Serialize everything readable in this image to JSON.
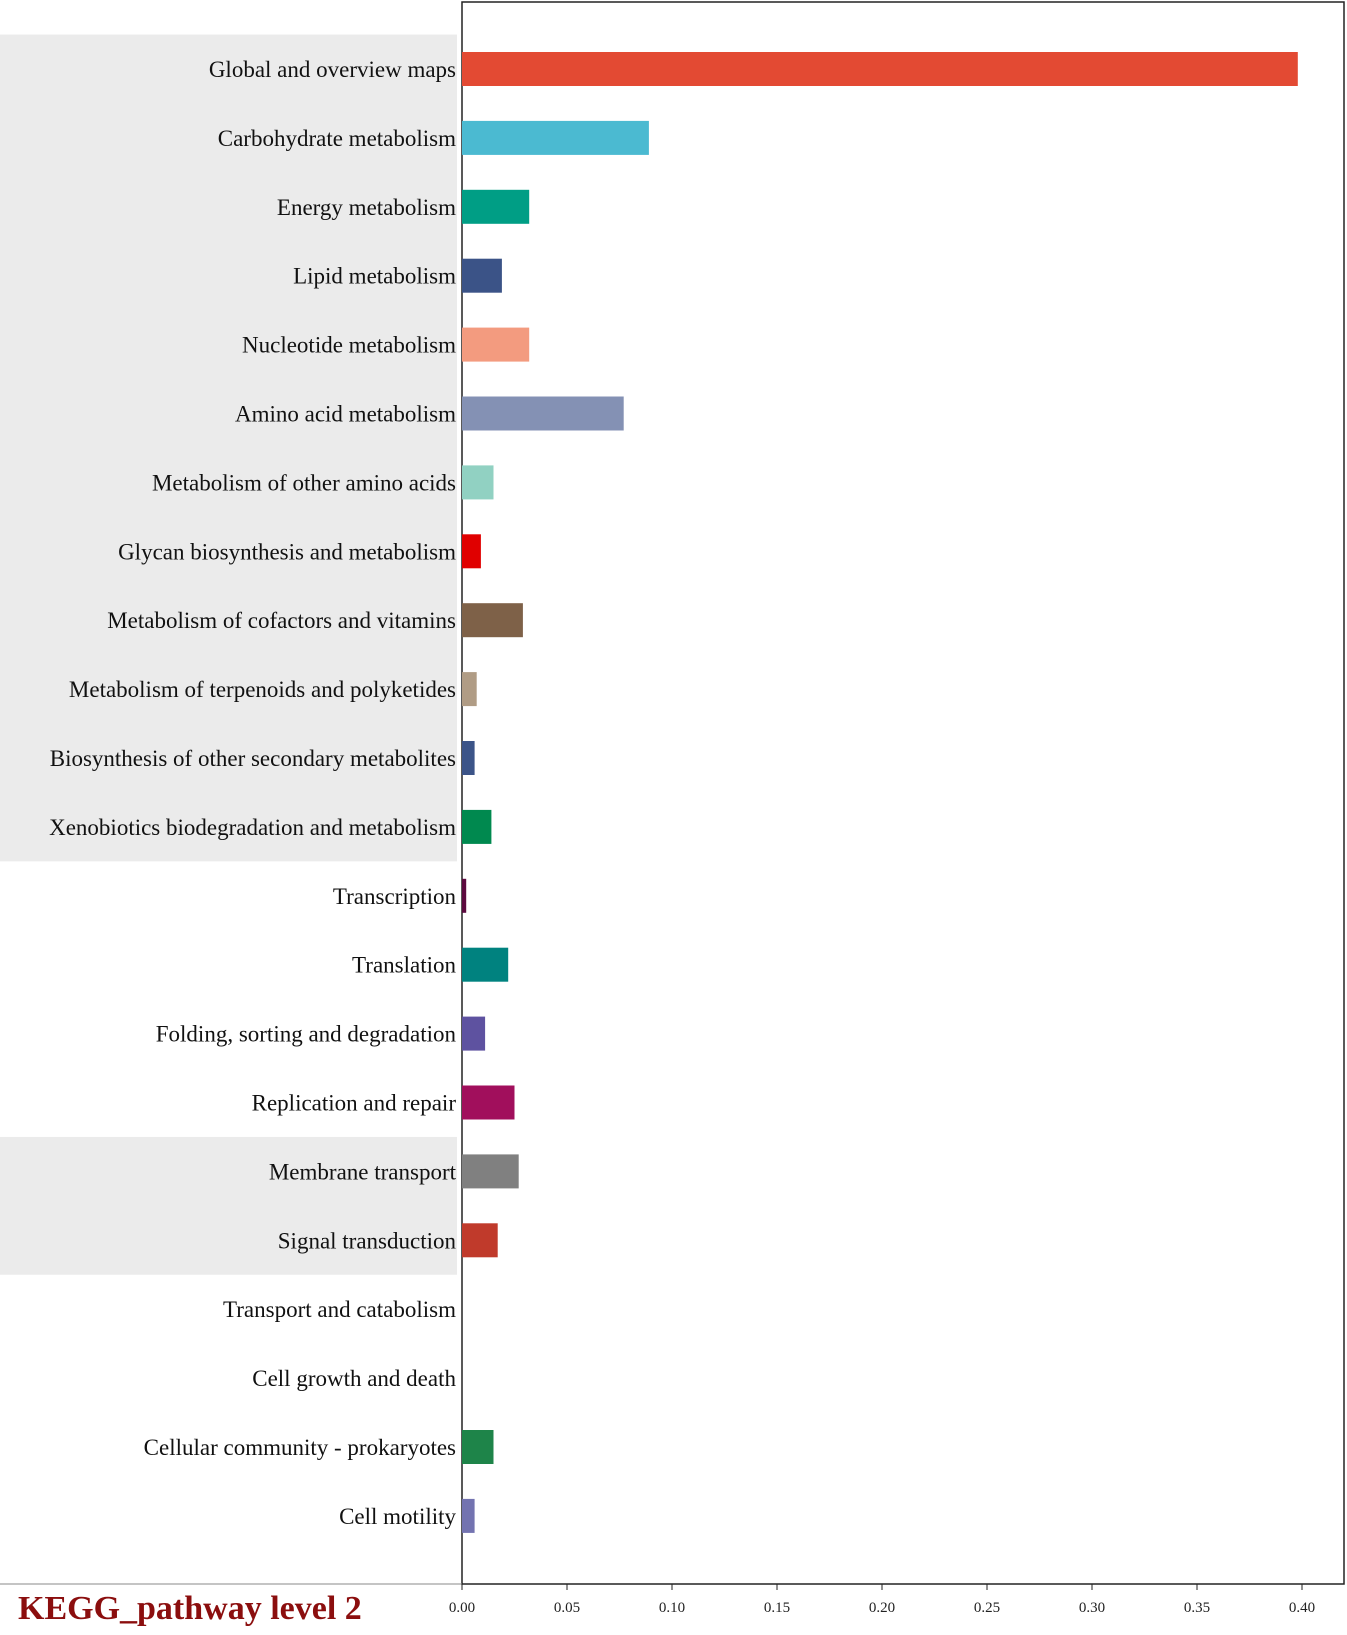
{
  "chart_data": {
    "type": "bar",
    "orientation": "horizontal",
    "title": "KEGG_pathway level 2",
    "xlabel": "",
    "ylabel": "",
    "xlim": [
      0,
      0.42
    ],
    "x_ticks": [
      "0.00",
      "0.05",
      "0.10",
      "0.15",
      "0.20",
      "0.25",
      "0.30",
      "0.35",
      "0.40"
    ],
    "grid": false,
    "legend": "none",
    "categories": [
      "Global and overview maps",
      "Carbohydrate metabolism",
      "Energy metabolism",
      "Lipid metabolism",
      "Nucleotide metabolism",
      "Amino acid metabolism",
      "Metabolism of other amino acids",
      "Glycan biosynthesis and metabolism",
      "Metabolism of cofactors and vitamins",
      "Metabolism of terpenoids and polyketides",
      "Biosynthesis of other secondary metabolites",
      "Xenobiotics biodegradation and metabolism",
      "Transcription",
      "Translation",
      "Folding, sorting and degradation",
      "Replication and repair",
      "Membrane transport",
      "Signal transduction",
      "Transport and catabolism",
      "Cell growth and death",
      "Cellular community - prokaryotes",
      "Cell motility"
    ],
    "values": [
      0.398,
      0.089,
      0.032,
      0.019,
      0.032,
      0.077,
      0.015,
      0.009,
      0.029,
      0.007,
      0.006,
      0.014,
      0.002,
      0.022,
      0.011,
      0.025,
      0.027,
      0.017,
      0.0,
      0.0,
      0.015,
      0.006
    ],
    "colors": [
      "#e34a33",
      "#4bbad1",
      "#009e85",
      "#3b5387",
      "#f39b7f",
      "#8491b4",
      "#91d1c2",
      "#e00000",
      "#7e6148",
      "#b09c85",
      "#3c5488",
      "#00894f",
      "#5c0a3f",
      "#00827f",
      "#5e52a0",
      "#a10f5c",
      "#808080",
      "#c03a2b",
      "#999999",
      "#999999",
      "#1e8449",
      "#7373b0"
    ],
    "shaded_bands": [
      {
        "from_category": "Global and overview maps",
        "to_category": "Xenobiotics biodegradation and metabolism",
        "color": "#ebebeb"
      },
      {
        "from_category": "Membrane transport",
        "to_category": "Signal transduction",
        "color": "#ebebeb"
      }
    ]
  }
}
